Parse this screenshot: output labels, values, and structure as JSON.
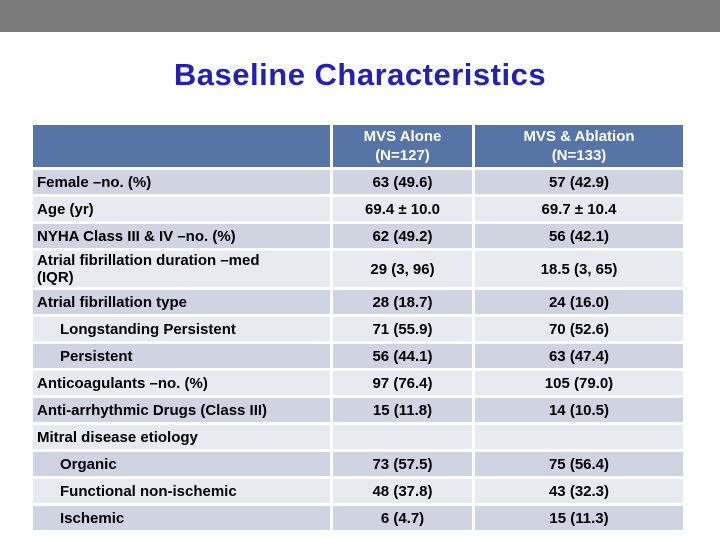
{
  "colors": {
    "top_bar": "#7a7a7a",
    "title_text": "#2121b2",
    "table_header_bg": "#5674a6",
    "table_header_text": "#ffffff",
    "row_band_dark": "#cfd3e2",
    "row_band_light": "#e9eaf1",
    "cell_text": "#000000"
  },
  "slide": {
    "title": "Baseline Characteristics"
  },
  "table": {
    "header": {
      "label_col": "",
      "col1": {
        "line1": "MVS Alone",
        "line2": "(N=127)"
      },
      "col2": {
        "line1": "MVS & Ablation",
        "line2": "(N=133)"
      }
    },
    "rows": [
      {
        "label": "Female –no. (%)",
        "indent": false,
        "mvs_alone": "63 (49.6)",
        "mvs_ablation": "57 (42.9)"
      },
      {
        "label": "Age (yr)",
        "indent": false,
        "mvs_alone": "69.4 ± 10.0",
        "mvs_ablation": "69.7 ± 10.4"
      },
      {
        "label": "NYHA Class III & IV –no. (%)",
        "indent": false,
        "mvs_alone": "62 (49.2)",
        "mvs_ablation": "56 (42.1)"
      },
      {
        "label": "Atrial fibrillation duration –med\n(IQR)",
        "indent": false,
        "mvs_alone": "29 (3, 96)",
        "mvs_ablation": "18.5 (3, 65)"
      },
      {
        "label": "Atrial fibrillation type",
        "indent": false,
        "mvs_alone": "28 (18.7)",
        "mvs_ablation": "24 (16.0)"
      },
      {
        "label": "Longstanding Persistent",
        "indent": true,
        "mvs_alone": "71 (55.9)",
        "mvs_ablation": "70 (52.6)"
      },
      {
        "label": "Persistent",
        "indent": true,
        "mvs_alone": "56 (44.1)",
        "mvs_ablation": "63 (47.4)"
      },
      {
        "label": "Anticoagulants –no. (%)",
        "indent": false,
        "mvs_alone": "97 (76.4)",
        "mvs_ablation": "105 (79.0)"
      },
      {
        "label": "Anti-arrhythmic Drugs (Class III)",
        "indent": false,
        "mvs_alone": "15 (11.8)",
        "mvs_ablation": "14 (10.5)"
      },
      {
        "label": "Mitral disease etiology",
        "indent": false,
        "mvs_alone": "",
        "mvs_ablation": ""
      },
      {
        "label": "Organic",
        "indent": true,
        "mvs_alone": "73 (57.5)",
        "mvs_ablation": "75 (56.4)"
      },
      {
        "label": "Functional non-ischemic",
        "indent": true,
        "mvs_alone": "48 (37.8)",
        "mvs_ablation": "43 (32.3)"
      },
      {
        "label": "Ischemic",
        "indent": true,
        "mvs_alone": "6 (4.7)",
        "mvs_ablation": "15 (11.3)"
      }
    ]
  }
}
